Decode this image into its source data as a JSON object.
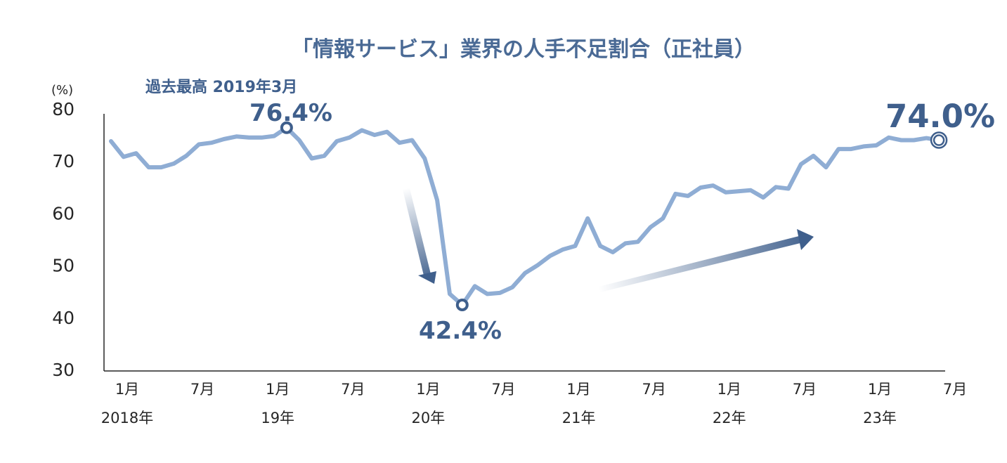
{
  "chart_data": {
    "type": "line",
    "title": "「情報サービス」業界の人手不足割合（正社員）",
    "ylabel": "(%)",
    "ylim": [
      30,
      80
    ],
    "yticks": [
      "80",
      "70",
      "60",
      "50",
      "40",
      "30"
    ],
    "x_tick_labels": [
      {
        "month": "1月",
        "year": "2018年",
        "index": 0
      },
      {
        "month": "7月",
        "year": "",
        "index": 6
      },
      {
        "month": "1月",
        "year": "19年",
        "index": 12
      },
      {
        "month": "7月",
        "year": "",
        "index": 18
      },
      {
        "month": "1月",
        "year": "20年",
        "index": 24
      },
      {
        "month": "7月",
        "year": "",
        "index": 30
      },
      {
        "month": "1月",
        "year": "21年",
        "index": 36
      },
      {
        "month": "7月",
        "year": "",
        "index": 42
      },
      {
        "month": "1月",
        "year": "22年",
        "index": 48
      },
      {
        "month": "7月",
        "year": "",
        "index": 54
      },
      {
        "month": "1月",
        "year": "23年",
        "index": 60
      },
      {
        "month": "7月",
        "year": "",
        "index": 66
      }
    ],
    "series": [
      {
        "name": "人手不足割合（正社員）",
        "color": "#8fadd4",
        "values": [
          73.8,
          70.8,
          71.5,
          68.8,
          68.8,
          69.5,
          71.0,
          73.2,
          73.5,
          74.2,
          74.7,
          74.5,
          74.5,
          74.8,
          76.4,
          74.0,
          70.5,
          71.0,
          73.8,
          74.5,
          75.9,
          75.0,
          75.6,
          73.5,
          74.0,
          70.5,
          62.5,
          44.5,
          42.4,
          46.0,
          44.5,
          44.7,
          45.8,
          48.5,
          50.0,
          51.8,
          53.0,
          53.7,
          59.0,
          53.7,
          52.5,
          54.2,
          54.5,
          57.3,
          59.0,
          63.7,
          63.3,
          64.9,
          65.3,
          64.0,
          64.2,
          64.4,
          63.0,
          65.0,
          64.7,
          69.4,
          71.0,
          68.8,
          72.3,
          72.3,
          72.8,
          73.0,
          74.5,
          74.0,
          74.0,
          74.4,
          74.0
        ]
      }
    ],
    "annotations": {
      "peak_note": "過去最高 2019年3月",
      "peak_label": "76.4%",
      "peak_index": 14,
      "trough_label": "42.4%",
      "trough_index": 28,
      "latest_label": "74.0%",
      "latest_index": 66
    }
  },
  "colors": {
    "title": "#4a6a95",
    "line": "#8fadd4",
    "marker": "#3f5f8c",
    "arrow": "#3f5f8c",
    "axis": "#262626"
  }
}
